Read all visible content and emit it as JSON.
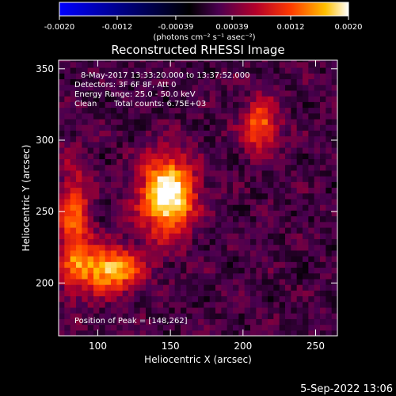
{
  "colorbar": {
    "ticks": [
      "-0.0020",
      "-0.0012",
      "-0.00039",
      "0.00039",
      "0.0012",
      "0.0020"
    ],
    "tick_values": [
      -0.002,
      -0.0012,
      -0.00039,
      0.00039,
      0.0012,
      0.002
    ],
    "range": [
      -0.002,
      0.002
    ],
    "units": "(photons cm⁻² s⁻¹ asec⁻²)"
  },
  "chart_data": {
    "type": "heatmap",
    "title": "Reconstructed RHESSI Image",
    "xlabel": "Heliocentric X (arcsec)",
    "ylabel": "Heliocentric Y (arcsec)",
    "xlim": [
      73,
      265
    ],
    "ylim": [
      163,
      356
    ],
    "xticks": [
      100,
      150,
      200,
      250
    ],
    "yticks": [
      200,
      250,
      300,
      350
    ],
    "value_range": [
      -0.002,
      0.002
    ],
    "peak": [
      148,
      262
    ],
    "sources": [
      {
        "x": 148,
        "y": 262,
        "sx": 13,
        "sy": 19,
        "amplitude": 0.0021
      },
      {
        "x": 108,
        "y": 210,
        "sx": 16,
        "sy": 11,
        "amplitude": 0.0016
      },
      {
        "x": 212,
        "y": 310,
        "sx": 9,
        "sy": 13,
        "amplitude": 0.0012
      },
      {
        "x": 84,
        "y": 240,
        "sx": 8,
        "sy": 30,
        "amplitude": 0.0011
      }
    ]
  },
  "annotations": {
    "date_line": "8-May-2017 13:33:20.000 to 13:37:52.000",
    "detectors": "Detectors: 3F 6F 8F, Att 0",
    "energy": "Energy Range: 25.0 - 50.0 keV",
    "method": "Clean",
    "total_counts": "Total counts: 6.75E+03",
    "peak_text": "Position of Peak = [148,262]"
  },
  "footer": {
    "timestamp": "5-Sep-2022 13:06"
  }
}
